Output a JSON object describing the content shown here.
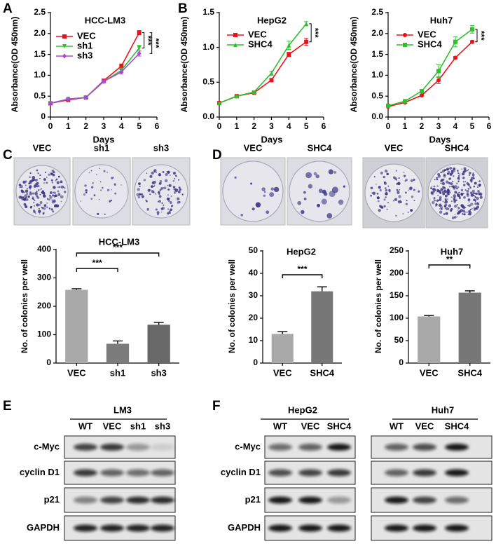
{
  "panel_labels": [
    "A",
    "B",
    "C",
    "D",
    "E",
    "F"
  ],
  "chart_data": [
    {
      "type": "line",
      "title": "HCC-LM3",
      "x_label": "Days",
      "y_label": "Absorbance(OD 450nm)",
      "x": [
        0,
        1,
        2,
        3,
        4,
        5
      ],
      "xlim": [
        0,
        6
      ],
      "xticks": [
        0,
        1,
        2,
        3,
        4,
        5,
        6
      ],
      "ylim": [
        0,
        2.5
      ],
      "yticks": [
        0,
        0.5,
        {
          "value": 1,
          "label": "1.0"
        },
        1.5,
        {
          "value": 2,
          "label": "2.0"
        },
        2.5
      ],
      "series": [
        {
          "name": "VEC",
          "color": "#e8141c",
          "marker": "square",
          "values": [
            0.33,
            0.41,
            0.47,
            0.87,
            1.22,
            2.02
          ],
          "errors": [
            0.02,
            0.02,
            0.02,
            0.03,
            0.05,
            0.05
          ]
        },
        {
          "name": "sh1",
          "color": "#2fbf2f",
          "marker": "triangle-down",
          "values": [
            0.33,
            0.43,
            0.47,
            0.85,
            1.12,
            1.65
          ],
          "errors": [
            0.02,
            0.02,
            0.02,
            0.03,
            0.05,
            0.07
          ]
        },
        {
          "name": "sh3",
          "color": "#a64bd6",
          "marker": "diamond",
          "values": [
            0.33,
            0.43,
            0.47,
            0.85,
            1.08,
            1.52
          ],
          "errors": [
            0.02,
            0.02,
            0.02,
            0.03,
            0.05,
            0.06
          ]
        }
      ],
      "annotations": [
        "***",
        "***"
      ]
    },
    {
      "type": "line",
      "title": "HepG2",
      "x_label": "Days",
      "y_label": "Absorbance(OD 450nm)",
      "x": [
        0,
        1,
        2,
        3,
        4,
        5
      ],
      "xlim": [
        0,
        6
      ],
      "xticks": [
        0,
        1,
        2,
        3,
        4,
        5,
        6
      ],
      "ylim": [
        0,
        1.5
      ],
      "yticks": [
        {
          "value": 0,
          "label": "0.0"
        },
        0.5,
        {
          "value": 1,
          "label": "1.0"
        },
        1.5
      ],
      "series": [
        {
          "name": "VEC",
          "color": "#e8141c",
          "marker": "square",
          "values": [
            0.2,
            0.3,
            0.35,
            0.53,
            0.9,
            1.08
          ],
          "errors": [
            0.01,
            0.01,
            0.01,
            0.02,
            0.03,
            0.05
          ]
        },
        {
          "name": "SHC4",
          "color": "#2fbf2f",
          "marker": "triangle-up",
          "values": [
            0.2,
            0.3,
            0.36,
            0.63,
            1.03,
            1.34
          ],
          "errors": [
            0.01,
            0.01,
            0.01,
            0.03,
            0.06,
            0.03
          ]
        }
      ],
      "annotations": [
        "***"
      ]
    },
    {
      "type": "line",
      "title": "Huh7",
      "x_label": "Days",
      "y_label": "Absorbance(OD 450nm)",
      "x": [
        0,
        1,
        2,
        3,
        4,
        5
      ],
      "xlim": [
        0,
        6
      ],
      "xticks": [
        0,
        1,
        2,
        3,
        4,
        5,
        6
      ],
      "ylim": [
        0,
        2.5
      ],
      "yticks": [
        {
          "value": 0,
          "label": "0.0"
        },
        0.5,
        {
          "value": 1,
          "label": "1.0"
        },
        1.5,
        {
          "value": 2,
          "label": "2.0"
        },
        2.5
      ],
      "series": [
        {
          "name": "VEC",
          "color": "#e8141c",
          "marker": "circle",
          "values": [
            0.25,
            0.35,
            0.52,
            0.88,
            1.42,
            1.8
          ],
          "errors": [
            0.02,
            0.02,
            0.02,
            0.08,
            0.03,
            0.03
          ]
        },
        {
          "name": "SHC4",
          "color": "#2fbf2f",
          "marker": "square",
          "values": [
            0.27,
            0.38,
            0.62,
            1.1,
            1.8,
            2.1
          ],
          "errors": [
            0.02,
            0.02,
            0.03,
            0.15,
            0.12,
            0.09
          ]
        }
      ],
      "annotations": [
        "***"
      ]
    },
    {
      "type": "bar",
      "title": "HCC-LM3",
      "y_label": "No. of colonies per well",
      "categories": [
        "VEC",
        "sh1",
        "sh3"
      ],
      "values": [
        258,
        68,
        135
      ],
      "errors": [
        4,
        10,
        8
      ],
      "colors": [
        "#a9a9a9",
        "#7b7b7b",
        "#686868"
      ],
      "ylim": [
        0,
        400
      ],
      "yticks": [
        0,
        100,
        200,
        300,
        400
      ],
      "annotations": [
        "***",
        "***"
      ]
    },
    {
      "type": "bar",
      "title": "HepG2",
      "y_label": "No. of colonies per well",
      "categories": [
        "VEC",
        "SHC4"
      ],
      "values": [
        13,
        32
      ],
      "errors": [
        1,
        2
      ],
      "colors": [
        "#a9a9a9",
        "#777777"
      ],
      "ylim": [
        0,
        50
      ],
      "yticks": [
        0,
        10,
        20,
        30,
        40,
        50
      ],
      "annotations": [
        "***"
      ]
    },
    {
      "type": "bar",
      "title": "Huh7",
      "y_label": "No. of colonies per well",
      "categories": [
        "VEC",
        "SHC4"
      ],
      "values": [
        104,
        157
      ],
      "errors": [
        2,
        4
      ],
      "colors": [
        "#a9a9a9",
        "#777777"
      ],
      "ylim": [
        0,
        250
      ],
      "yticks": [
        0,
        50,
        100,
        150,
        200,
        250
      ],
      "annotations": [
        "**"
      ]
    }
  ],
  "colony_plates": [
    [
      "VEC",
      "sh1",
      "sh3"
    ],
    [
      "VEC",
      "SHC4"
    ],
    [
      "VEC",
      "SHC4"
    ]
  ],
  "blots": {
    "E": {
      "title": "LM3",
      "lanes": [
        "WT",
        "VEC",
        "sh1",
        "sh3"
      ],
      "rows": [
        "c-Myc",
        "cyclin D1",
        "p21",
        "GAPDH"
      ]
    },
    "F": {
      "groups": [
        {
          "title": "HepG2",
          "lanes": [
            "WT",
            "VEC",
            "SHC4"
          ]
        },
        {
          "title": "Huh7",
          "lanes": [
            "WT",
            "VEC",
            "SHC4"
          ]
        }
      ],
      "rows": [
        "c-Myc",
        "cyclin D1",
        "p21",
        "GAPDH"
      ]
    }
  }
}
